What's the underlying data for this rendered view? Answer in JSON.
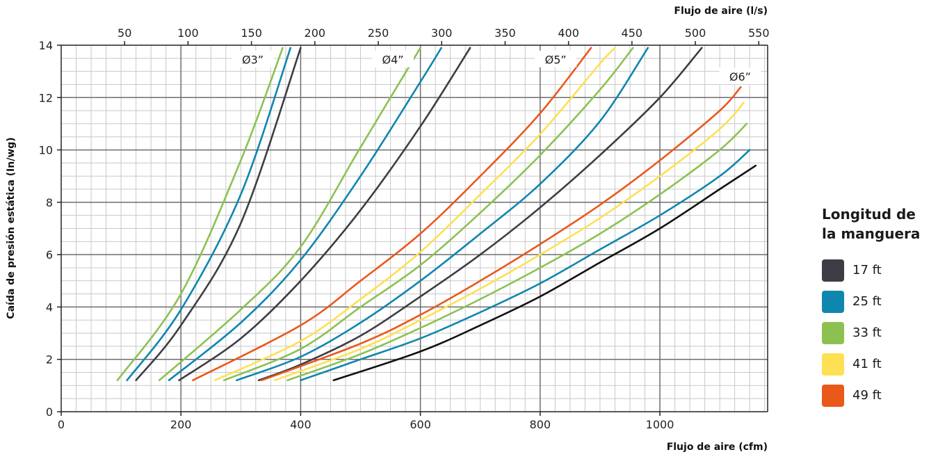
{
  "chart_data": {
    "type": "line",
    "xlabel": "Flujo de aire (cfm)",
    "x2label": "Flujo de aire (l/s)",
    "ylabel": "Caída de presión estática (In/wg)",
    "xlim": [
      0,
      1180
    ],
    "x2lim": [
      0,
      557
    ],
    "ylim": [
      0,
      14
    ],
    "x_ticks": [
      "0",
      "200",
      "400",
      "600",
      "800",
      "1000"
    ],
    "x2_ticks": [
      "50",
      "100",
      "150",
      "200",
      "250",
      "300",
      "350",
      "400",
      "450",
      "500",
      "550"
    ],
    "y_ticks": [
      "0",
      "2",
      "4",
      "6",
      "8",
      "10",
      "12",
      "14"
    ],
    "grid": true,
    "legend_position": "right",
    "legend": {
      "title_lines": [
        "Longitud de",
        "la manguera"
      ],
      "entries": [
        {
          "label": "17 ft",
          "color": "#3d3d45"
        },
        {
          "label": "25 ft",
          "color": "#0f86ad"
        },
        {
          "label": "33 ft",
          "color": "#8cc152"
        },
        {
          "label": "41 ft",
          "color": "#fde054"
        },
        {
          "label": "49 ft",
          "color": "#e8591a"
        }
      ]
    },
    "diameter_labels": [
      {
        "text": "Ø3”",
        "x": 320,
        "y": 13.45
      },
      {
        "text": "Ø4”",
        "x": 554,
        "y": 13.45
      },
      {
        "text": "Ø5”",
        "x": 826,
        "y": 13.45
      },
      {
        "text": "Ø6”",
        "x": 1134,
        "y": 12.8
      }
    ],
    "series": [
      {
        "group": "Ø3”",
        "length_ft": 17,
        "color": "#3d3d45",
        "x": [
          125,
          200,
          300,
          400
        ],
        "y": [
          1.2,
          3.3,
          7.2,
          13.9
        ]
      },
      {
        "group": "Ø3”",
        "length_ft": 25,
        "color": "#0f86ad",
        "x": [
          110,
          200,
          300,
          383
        ],
        "y": [
          1.2,
          3.9,
          8.3,
          13.9
        ]
      },
      {
        "group": "Ø3”",
        "length_ft": 33,
        "color": "#8cc152",
        "x": [
          94,
          200,
          300,
          370
        ],
        "y": [
          1.2,
          4.5,
          9.6,
          13.9
        ]
      },
      {
        "group": "Ø4”",
        "length_ft": 17,
        "color": "#3d3d45",
        "x": [
          197,
          300,
          400,
          500,
          600,
          683
        ],
        "y": [
          1.2,
          2.8,
          5.0,
          7.7,
          10.9,
          13.9
        ]
      },
      {
        "group": "Ø4”",
        "length_ft": 25,
        "color": "#0f86ad",
        "x": [
          180,
          300,
          400,
          500,
          600,
          635
        ],
        "y": [
          1.2,
          3.4,
          5.8,
          9.0,
          12.6,
          13.9
        ]
      },
      {
        "group": "Ø4”",
        "length_ft": 33,
        "color": "#8cc152",
        "x": [
          164,
          300,
          400,
          500,
          600
        ],
        "y": [
          1.2,
          3.9,
          6.3,
          10.1,
          13.9
        ]
      },
      {
        "group": "Ø5”",
        "length_ft": 17,
        "color": "#3d3d45",
        "x": [
          330,
          400,
          500,
          600,
          700,
          800,
          900,
          1000,
          1070
        ],
        "y": [
          1.2,
          1.8,
          2.9,
          4.4,
          6.0,
          7.8,
          9.8,
          12.0,
          13.9
        ]
      },
      {
        "group": "Ø5”",
        "length_ft": 25,
        "color": "#0f86ad",
        "x": [
          293,
          400,
          500,
          600,
          700,
          800,
          900,
          980
        ],
        "y": [
          1.2,
          2.1,
          3.4,
          5.0,
          6.8,
          8.7,
          11.1,
          13.9
        ]
      },
      {
        "group": "Ø5”",
        "length_ft": 33,
        "color": "#8cc152",
        "x": [
          272,
          400,
          500,
          600,
          700,
          800,
          900,
          955
        ],
        "y": [
          1.2,
          2.4,
          4.0,
          5.6,
          7.6,
          9.8,
          12.3,
          13.9
        ]
      },
      {
        "group": "Ø5”",
        "length_ft": 41,
        "color": "#fde054",
        "x": [
          257,
          400,
          500,
          600,
          700,
          800,
          900,
          925
        ],
        "y": [
          1.2,
          2.7,
          4.3,
          6.1,
          8.3,
          10.6,
          13.3,
          13.9
        ]
      },
      {
        "group": "Ø5”",
        "length_ft": 49,
        "color": "#e8591a",
        "x": [
          220,
          400,
          500,
          600,
          700,
          800,
          885
        ],
        "y": [
          1.2,
          3.3,
          5.0,
          6.8,
          9.0,
          11.4,
          13.9
        ]
      },
      {
        "group": "Ø6”",
        "length_ft": 17,
        "color": "#111111",
        "x": [
          455,
          600,
          700,
          800,
          900,
          1000,
          1100,
          1160
        ],
        "y": [
          1.2,
          2.3,
          3.3,
          4.4,
          5.7,
          7.0,
          8.5,
          9.4
        ]
      },
      {
        "group": "Ø6”",
        "length_ft": 25,
        "color": "#0f86ad",
        "x": [
          400,
          500,
          600,
          700,
          800,
          900,
          1000,
          1100,
          1150
        ],
        "y": [
          1.2,
          2.0,
          2.8,
          3.8,
          4.9,
          6.2,
          7.5,
          9.0,
          10.0
        ]
      },
      {
        "group": "Ø6”",
        "length_ft": 33,
        "color": "#8cc152",
        "x": [
          378,
          500,
          600,
          700,
          800,
          900,
          1000,
          1100,
          1145
        ],
        "y": [
          1.2,
          2.2,
          3.2,
          4.3,
          5.5,
          6.8,
          8.3,
          10.0,
          11.0
        ]
      },
      {
        "group": "Ø6”",
        "length_ft": 41,
        "color": "#fde054",
        "x": [
          357,
          500,
          600,
          700,
          800,
          900,
          1000,
          1100,
          1140
        ],
        "y": [
          1.2,
          2.4,
          3.5,
          4.7,
          6.0,
          7.4,
          9.0,
          10.8,
          11.8
        ]
      },
      {
        "group": "Ø6”",
        "length_ft": 49,
        "color": "#e8591a",
        "x": [
          335,
          500,
          600,
          700,
          800,
          900,
          1000,
          1100,
          1135
        ],
        "y": [
          1.2,
          2.6,
          3.7,
          5.0,
          6.4,
          7.9,
          9.6,
          11.5,
          12.4
        ]
      }
    ]
  }
}
